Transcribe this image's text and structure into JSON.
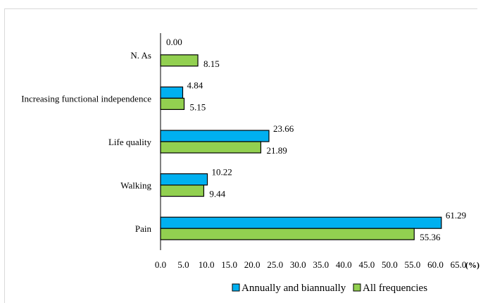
{
  "chart_data": {
    "type": "bar",
    "orientation": "horizontal",
    "categories": [
      "N. As",
      "Increasing functional independence",
      "Life quality",
      "Walking",
      "Pain"
    ],
    "series": [
      {
        "name": "Annually and biannually",
        "color": "#00b0f0",
        "values": [
          0.0,
          4.84,
          23.66,
          10.22,
          61.29
        ],
        "labels": [
          "0.00",
          "4.84",
          "23.66",
          "10.22",
          "61.29"
        ]
      },
      {
        "name": "All frequencies",
        "color": "#92d050",
        "values": [
          8.15,
          5.15,
          21.89,
          9.44,
          55.36
        ],
        "labels": [
          "8.15",
          "5.15",
          "21.89",
          "9.44",
          "55.36"
        ]
      }
    ],
    "xlim": [
      0,
      65
    ],
    "xticks": [
      "0.0",
      "5.0",
      "10.0",
      "15.0",
      "20.0",
      "25.0",
      "30.0",
      "35.0",
      "40.0",
      "45.0",
      "50.0",
      "55.0",
      "60.0",
      "65.0"
    ],
    "xlabel": "(%)",
    "ylabel": "",
    "title": "",
    "grid": false,
    "legend": "bottom"
  }
}
